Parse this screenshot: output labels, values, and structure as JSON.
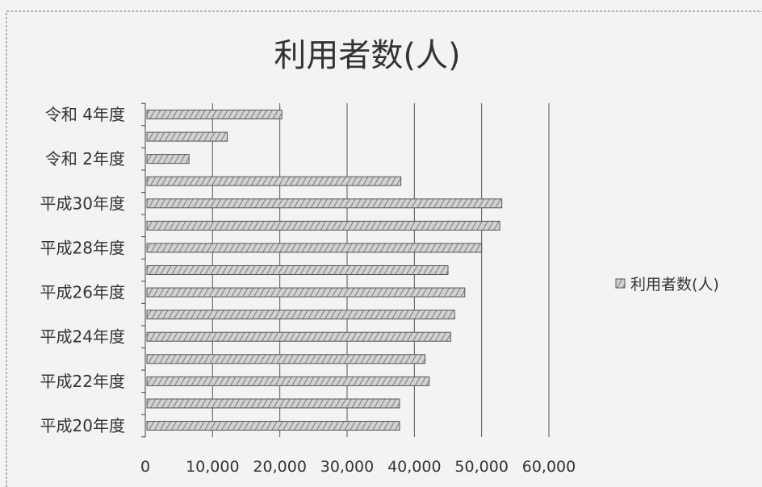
{
  "chart_data": {
    "type": "bar",
    "orientation": "horizontal",
    "title": "利用者数(人)",
    "xlabel": "",
    "ylabel": "",
    "categories": [
      "平成20年度",
      "",
      "平成22年度",
      "",
      "平成24年度",
      "",
      "平成26年度",
      "",
      "平成28年度",
      "",
      "平成30年度",
      "",
      "令和 2年度",
      "",
      "令和 4年度"
    ],
    "series": [
      {
        "name": "利用者数(人)",
        "values": [
          37800,
          37800,
          42200,
          41600,
          45400,
          46000,
          47500,
          45000,
          50000,
          52700,
          53000,
          38000,
          6500,
          12200,
          20300
        ]
      }
    ],
    "xlim": [
      0,
      60000
    ],
    "xticks": [
      "0",
      "10,000",
      "20,000",
      "30,000",
      "40,000",
      "50,000",
      "60,000"
    ],
    "grid": true,
    "legend": {
      "position": "right",
      "label": "利用者数(人)"
    },
    "colors": {
      "bar_fill": "#c7c7c7",
      "bar_stroke": "#555555",
      "grid": "#555555"
    }
  }
}
